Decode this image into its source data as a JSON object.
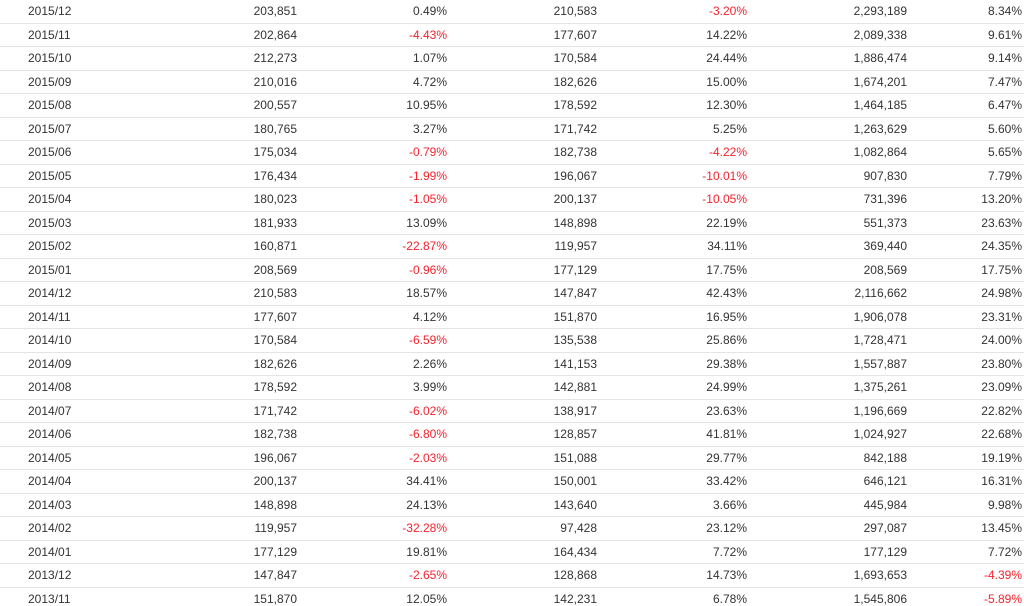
{
  "table": {
    "rows": [
      [
        "2015/12",
        "203,851",
        "0.49%",
        "210,583",
        "-3.20%",
        "2,293,189",
        "8.34%"
      ],
      [
        "2015/11",
        "202,864",
        "-4.43%",
        "177,607",
        "14.22%",
        "2,089,338",
        "9.61%"
      ],
      [
        "2015/10",
        "212,273",
        "1.07%",
        "170,584",
        "24.44%",
        "1,886,474",
        "9.14%"
      ],
      [
        "2015/09",
        "210,016",
        "4.72%",
        "182,626",
        "15.00%",
        "1,674,201",
        "7.47%"
      ],
      [
        "2015/08",
        "200,557",
        "10.95%",
        "178,592",
        "12.30%",
        "1,464,185",
        "6.47%"
      ],
      [
        "2015/07",
        "180,765",
        "3.27%",
        "171,742",
        "5.25%",
        "1,263,629",
        "5.60%"
      ],
      [
        "2015/06",
        "175,034",
        "-0.79%",
        "182,738",
        "-4.22%",
        "1,082,864",
        "5.65%"
      ],
      [
        "2015/05",
        "176,434",
        "-1.99%",
        "196,067",
        "-10.01%",
        "907,830",
        "7.79%"
      ],
      [
        "2015/04",
        "180,023",
        "-1.05%",
        "200,137",
        "-10.05%",
        "731,396",
        "13.20%"
      ],
      [
        "2015/03",
        "181,933",
        "13.09%",
        "148,898",
        "22.19%",
        "551,373",
        "23.63%"
      ],
      [
        "2015/02",
        "160,871",
        "-22.87%",
        "119,957",
        "34.11%",
        "369,440",
        "24.35%"
      ],
      [
        "2015/01",
        "208,569",
        "-0.96%",
        "177,129",
        "17.75%",
        "208,569",
        "17.75%"
      ],
      [
        "2014/12",
        "210,583",
        "18.57%",
        "147,847",
        "42.43%",
        "2,116,662",
        "24.98%"
      ],
      [
        "2014/11",
        "177,607",
        "4.12%",
        "151,870",
        "16.95%",
        "1,906,078",
        "23.31%"
      ],
      [
        "2014/10",
        "170,584",
        "-6.59%",
        "135,538",
        "25.86%",
        "1,728,471",
        "24.00%"
      ],
      [
        "2014/09",
        "182,626",
        "2.26%",
        "141,153",
        "29.38%",
        "1,557,887",
        "23.80%"
      ],
      [
        "2014/08",
        "178,592",
        "3.99%",
        "142,881",
        "24.99%",
        "1,375,261",
        "23.09%"
      ],
      [
        "2014/07",
        "171,742",
        "-6.02%",
        "138,917",
        "23.63%",
        "1,196,669",
        "22.82%"
      ],
      [
        "2014/06",
        "182,738",
        "-6.80%",
        "128,857",
        "41.81%",
        "1,024,927",
        "22.68%"
      ],
      [
        "2014/05",
        "196,067",
        "-2.03%",
        "151,088",
        "29.77%",
        "842,188",
        "19.19%"
      ],
      [
        "2014/04",
        "200,137",
        "34.41%",
        "150,001",
        "33.42%",
        "646,121",
        "16.31%"
      ],
      [
        "2014/03",
        "148,898",
        "24.13%",
        "143,640",
        "3.66%",
        "445,984",
        "9.98%"
      ],
      [
        "2014/02",
        "119,957",
        "-32.28%",
        "97,428",
        "23.12%",
        "297,087",
        "13.45%"
      ],
      [
        "2014/01",
        "177,129",
        "19.81%",
        "164,434",
        "7.72%",
        "177,129",
        "7.72%"
      ],
      [
        "2013/12",
        "147,847",
        "-2.65%",
        "128,868",
        "14.73%",
        "1,693,653",
        "-4.39%"
      ],
      [
        "2013/11",
        "151,870",
        "12.05%",
        "142,231",
        "6.78%",
        "1,545,806",
        "-5.89%"
      ]
    ]
  },
  "colors": {
    "negative": "#f5222d",
    "text": "#333333",
    "row_border": "#e4e4e4"
  }
}
